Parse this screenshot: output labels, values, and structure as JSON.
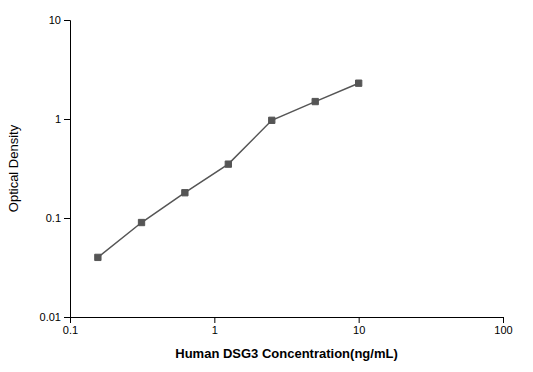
{
  "chart_data": {
    "type": "line",
    "xlabel": "Human DSG3 Concentration(ng/mL)",
    "ylabel": "Optical Density",
    "x": [
      0.156,
      0.313,
      0.625,
      1.25,
      2.5,
      5.0,
      10.0
    ],
    "values": [
      0.04,
      0.09,
      0.18,
      0.35,
      0.97,
      1.5,
      2.3
    ],
    "xlim": [
      0.1,
      100
    ],
    "ylim": [
      0.01,
      10
    ],
    "xticks": [
      0.1,
      1,
      10,
      100
    ],
    "yticks": [
      0.01,
      0.1,
      1,
      10
    ],
    "log": true,
    "grid": false,
    "color": "#555555",
    "marker": "square"
  }
}
